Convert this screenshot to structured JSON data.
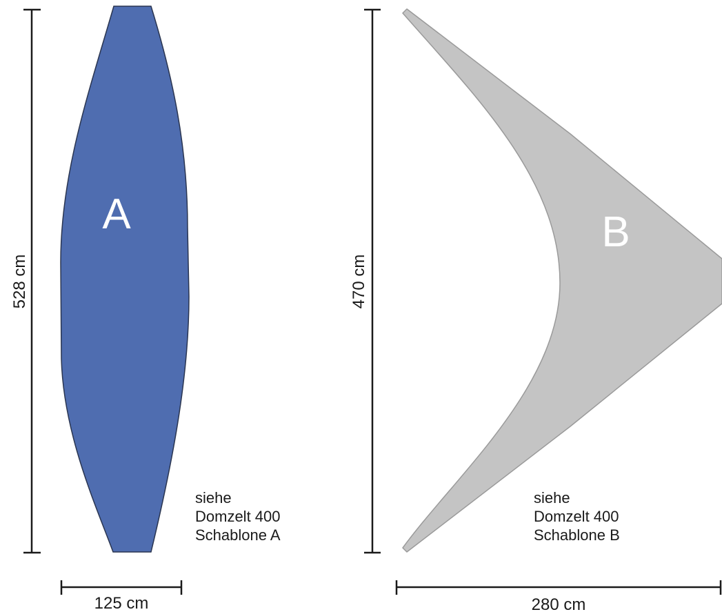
{
  "template_a": {
    "label": "A",
    "height_label": "528 cm",
    "width_label": "125 cm",
    "note": [
      "siehe",
      "Domzelt 400",
      "Schablone A"
    ],
    "fill_color": "#4f6db0"
  },
  "template_b": {
    "label": "B",
    "height_label": "470 cm",
    "width_label": "280 cm",
    "note": [
      "siehe",
      "Domzelt 400",
      "Schablone B"
    ],
    "fill_color": "#c4c4c4"
  }
}
